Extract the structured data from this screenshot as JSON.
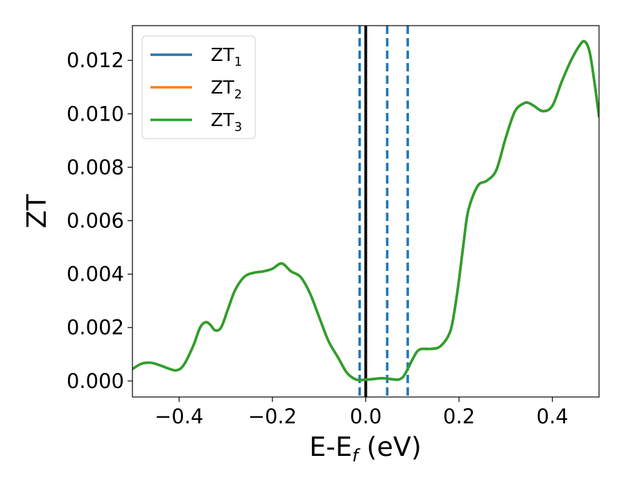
{
  "chart_data": {
    "type": "line",
    "title": "",
    "xlabel": {
      "base": "E-E",
      "sub": "f",
      "suffix": " (eV)"
    },
    "ylabel": "ZT",
    "xlim": [
      -0.5,
      0.5
    ],
    "ylim": [
      -0.0006,
      0.0133
    ],
    "xticks": [
      -0.4,
      -0.2,
      0.0,
      0.2,
      0.4
    ],
    "xtick_labels": [
      "−0.4",
      "−0.2",
      "0.0",
      "0.2",
      "0.4"
    ],
    "yticks": [
      0.0,
      0.002,
      0.004,
      0.006,
      0.008,
      0.01,
      0.012
    ],
    "ytick_labels": [
      "0.000",
      "0.002",
      "0.004",
      "0.006",
      "0.008",
      "0.010",
      "0.012"
    ],
    "grid": false,
    "legend_position": "top-left",
    "vlines": [
      {
        "x": 0.0,
        "style": "solid",
        "color": "#000000"
      },
      {
        "x": -0.013,
        "style": "dashed",
        "color": "#1f77b4"
      },
      {
        "x": 0.046,
        "style": "dashed",
        "color": "#1f77b4"
      },
      {
        "x": 0.09,
        "style": "dashed",
        "color": "#1f77b4"
      }
    ],
    "x": [
      -0.5,
      -0.48,
      -0.46,
      -0.44,
      -0.42,
      -0.405,
      -0.39,
      -0.37,
      -0.355,
      -0.343,
      -0.333,
      -0.323,
      -0.31,
      -0.295,
      -0.28,
      -0.26,
      -0.24,
      -0.22,
      -0.2,
      -0.18,
      -0.16,
      -0.14,
      -0.12,
      -0.1,
      -0.08,
      -0.06,
      -0.04,
      -0.02,
      0.0,
      0.02,
      0.03,
      0.04,
      0.05,
      0.06,
      0.07,
      0.08,
      0.09,
      0.1,
      0.11,
      0.12,
      0.14,
      0.16,
      0.18,
      0.19,
      0.2,
      0.21,
      0.22,
      0.24,
      0.26,
      0.28,
      0.3,
      0.32,
      0.34,
      0.35,
      0.36,
      0.38,
      0.4,
      0.42,
      0.44,
      0.46,
      0.47,
      0.48,
      0.49,
      0.5
    ],
    "series": [
      {
        "name": "ZT",
        "name_sub": "1",
        "color": "#1f77b4",
        "values": [
          0.00045,
          0.00065,
          0.00068,
          0.00058,
          0.00045,
          0.0004,
          0.0006,
          0.0013,
          0.002,
          0.0022,
          0.0021,
          0.0019,
          0.002,
          0.0027,
          0.0034,
          0.0039,
          0.00405,
          0.0041,
          0.0042,
          0.0044,
          0.0041,
          0.0039,
          0.0033,
          0.0024,
          0.0015,
          0.0009,
          0.0003,
          5e-05,
          5e-05,
          8e-05,
          0.0001,
          0.0001,
          8e-05,
          6e-05,
          5e-05,
          0.00015,
          0.00045,
          0.0008,
          0.0011,
          0.0012,
          0.0012,
          0.0013,
          0.0018,
          0.0026,
          0.0038,
          0.0052,
          0.0064,
          0.0073,
          0.0075,
          0.0079,
          0.0091,
          0.0101,
          0.0104,
          0.0104,
          0.0103,
          0.0101,
          0.0103,
          0.0112,
          0.012,
          0.0126,
          0.0127,
          0.0123,
          0.0112,
          0.0099
        ]
      },
      {
        "name": "ZT",
        "name_sub": "2",
        "color": "#ff7f0e",
        "values": [
          0.00045,
          0.00065,
          0.00068,
          0.00058,
          0.00045,
          0.0004,
          0.0006,
          0.0013,
          0.002,
          0.0022,
          0.0021,
          0.0019,
          0.002,
          0.0027,
          0.0034,
          0.0039,
          0.00405,
          0.0041,
          0.0042,
          0.0044,
          0.0041,
          0.0039,
          0.0033,
          0.0024,
          0.0015,
          0.0009,
          0.0003,
          5e-05,
          5e-05,
          8e-05,
          0.0001,
          0.0001,
          8e-05,
          6e-05,
          5e-05,
          0.00015,
          0.00045,
          0.0008,
          0.0011,
          0.0012,
          0.0012,
          0.0013,
          0.0018,
          0.0026,
          0.0038,
          0.0052,
          0.0064,
          0.0073,
          0.0075,
          0.0079,
          0.0091,
          0.0101,
          0.0104,
          0.0104,
          0.0103,
          0.0101,
          0.0103,
          0.0112,
          0.012,
          0.0126,
          0.0127,
          0.0123,
          0.0112,
          0.0099
        ]
      },
      {
        "name": "ZT",
        "name_sub": "3",
        "color": "#2ca02c",
        "values": [
          0.00045,
          0.00065,
          0.00068,
          0.00058,
          0.00045,
          0.0004,
          0.0006,
          0.0013,
          0.002,
          0.0022,
          0.0021,
          0.0019,
          0.002,
          0.0027,
          0.0034,
          0.0039,
          0.00405,
          0.0041,
          0.0042,
          0.0044,
          0.0041,
          0.0039,
          0.0033,
          0.0024,
          0.0015,
          0.0009,
          0.0003,
          5e-05,
          5e-05,
          8e-05,
          0.0001,
          0.0001,
          8e-05,
          6e-05,
          5e-05,
          0.00015,
          0.00045,
          0.0008,
          0.0011,
          0.0012,
          0.0012,
          0.0013,
          0.0018,
          0.0026,
          0.0038,
          0.0052,
          0.0064,
          0.0073,
          0.0075,
          0.0079,
          0.0091,
          0.0101,
          0.0104,
          0.0104,
          0.0103,
          0.0101,
          0.0103,
          0.0112,
          0.012,
          0.0126,
          0.0127,
          0.0123,
          0.0112,
          0.0099
        ]
      }
    ]
  }
}
